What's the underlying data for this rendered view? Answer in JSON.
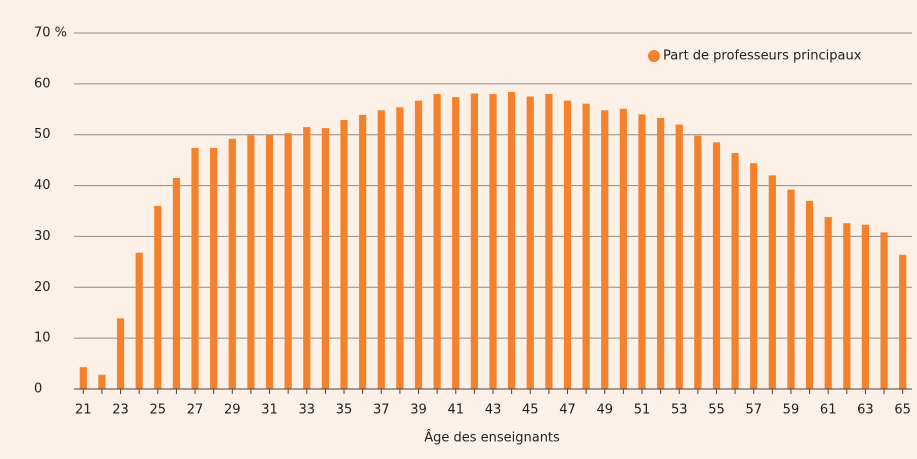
{
  "chart_data": {
    "type": "bar",
    "x_label": "Âge des enseignants",
    "categories": [
      21,
      null,
      23,
      null,
      25,
      null,
      27,
      null,
      29,
      null,
      31,
      null,
      33,
      null,
      35,
      null,
      37,
      null,
      39,
      null,
      41,
      null,
      43,
      null,
      45,
      null,
      47,
      null,
      49,
      null,
      51,
      null,
      53,
      null,
      55,
      null,
      57,
      null,
      59,
      null,
      61,
      null,
      63,
      null,
      65
    ],
    "series": [
      {
        "name": "Part de professeurs principaux",
        "color": "#f4812c",
        "values": [
          4.3,
          2.8,
          13.9,
          26.8,
          36,
          41.5,
          47.4,
          47.4,
          49.2,
          49.9,
          50,
          50.3,
          51.5,
          51.3,
          52.9,
          53.9,
          54.8,
          55.4,
          56.7,
          58,
          57.4,
          58.1,
          58,
          58.4,
          57.5,
          58,
          56.7,
          56.1,
          54.8,
          55.1,
          54,
          53.3,
          52,
          49.8,
          48.5,
          46.4,
          44.4,
          42,
          39.2,
          37,
          33.8,
          32.6,
          32.3,
          30.8,
          26.4
        ]
      }
    ],
    "ylim": [
      0,
      70
    ],
    "yticks": [
      0,
      10,
      20,
      30,
      40,
      50,
      60,
      {
        "value": 70,
        "label": "70 %"
      }
    ],
    "grid": true,
    "legend": "top-right"
  }
}
